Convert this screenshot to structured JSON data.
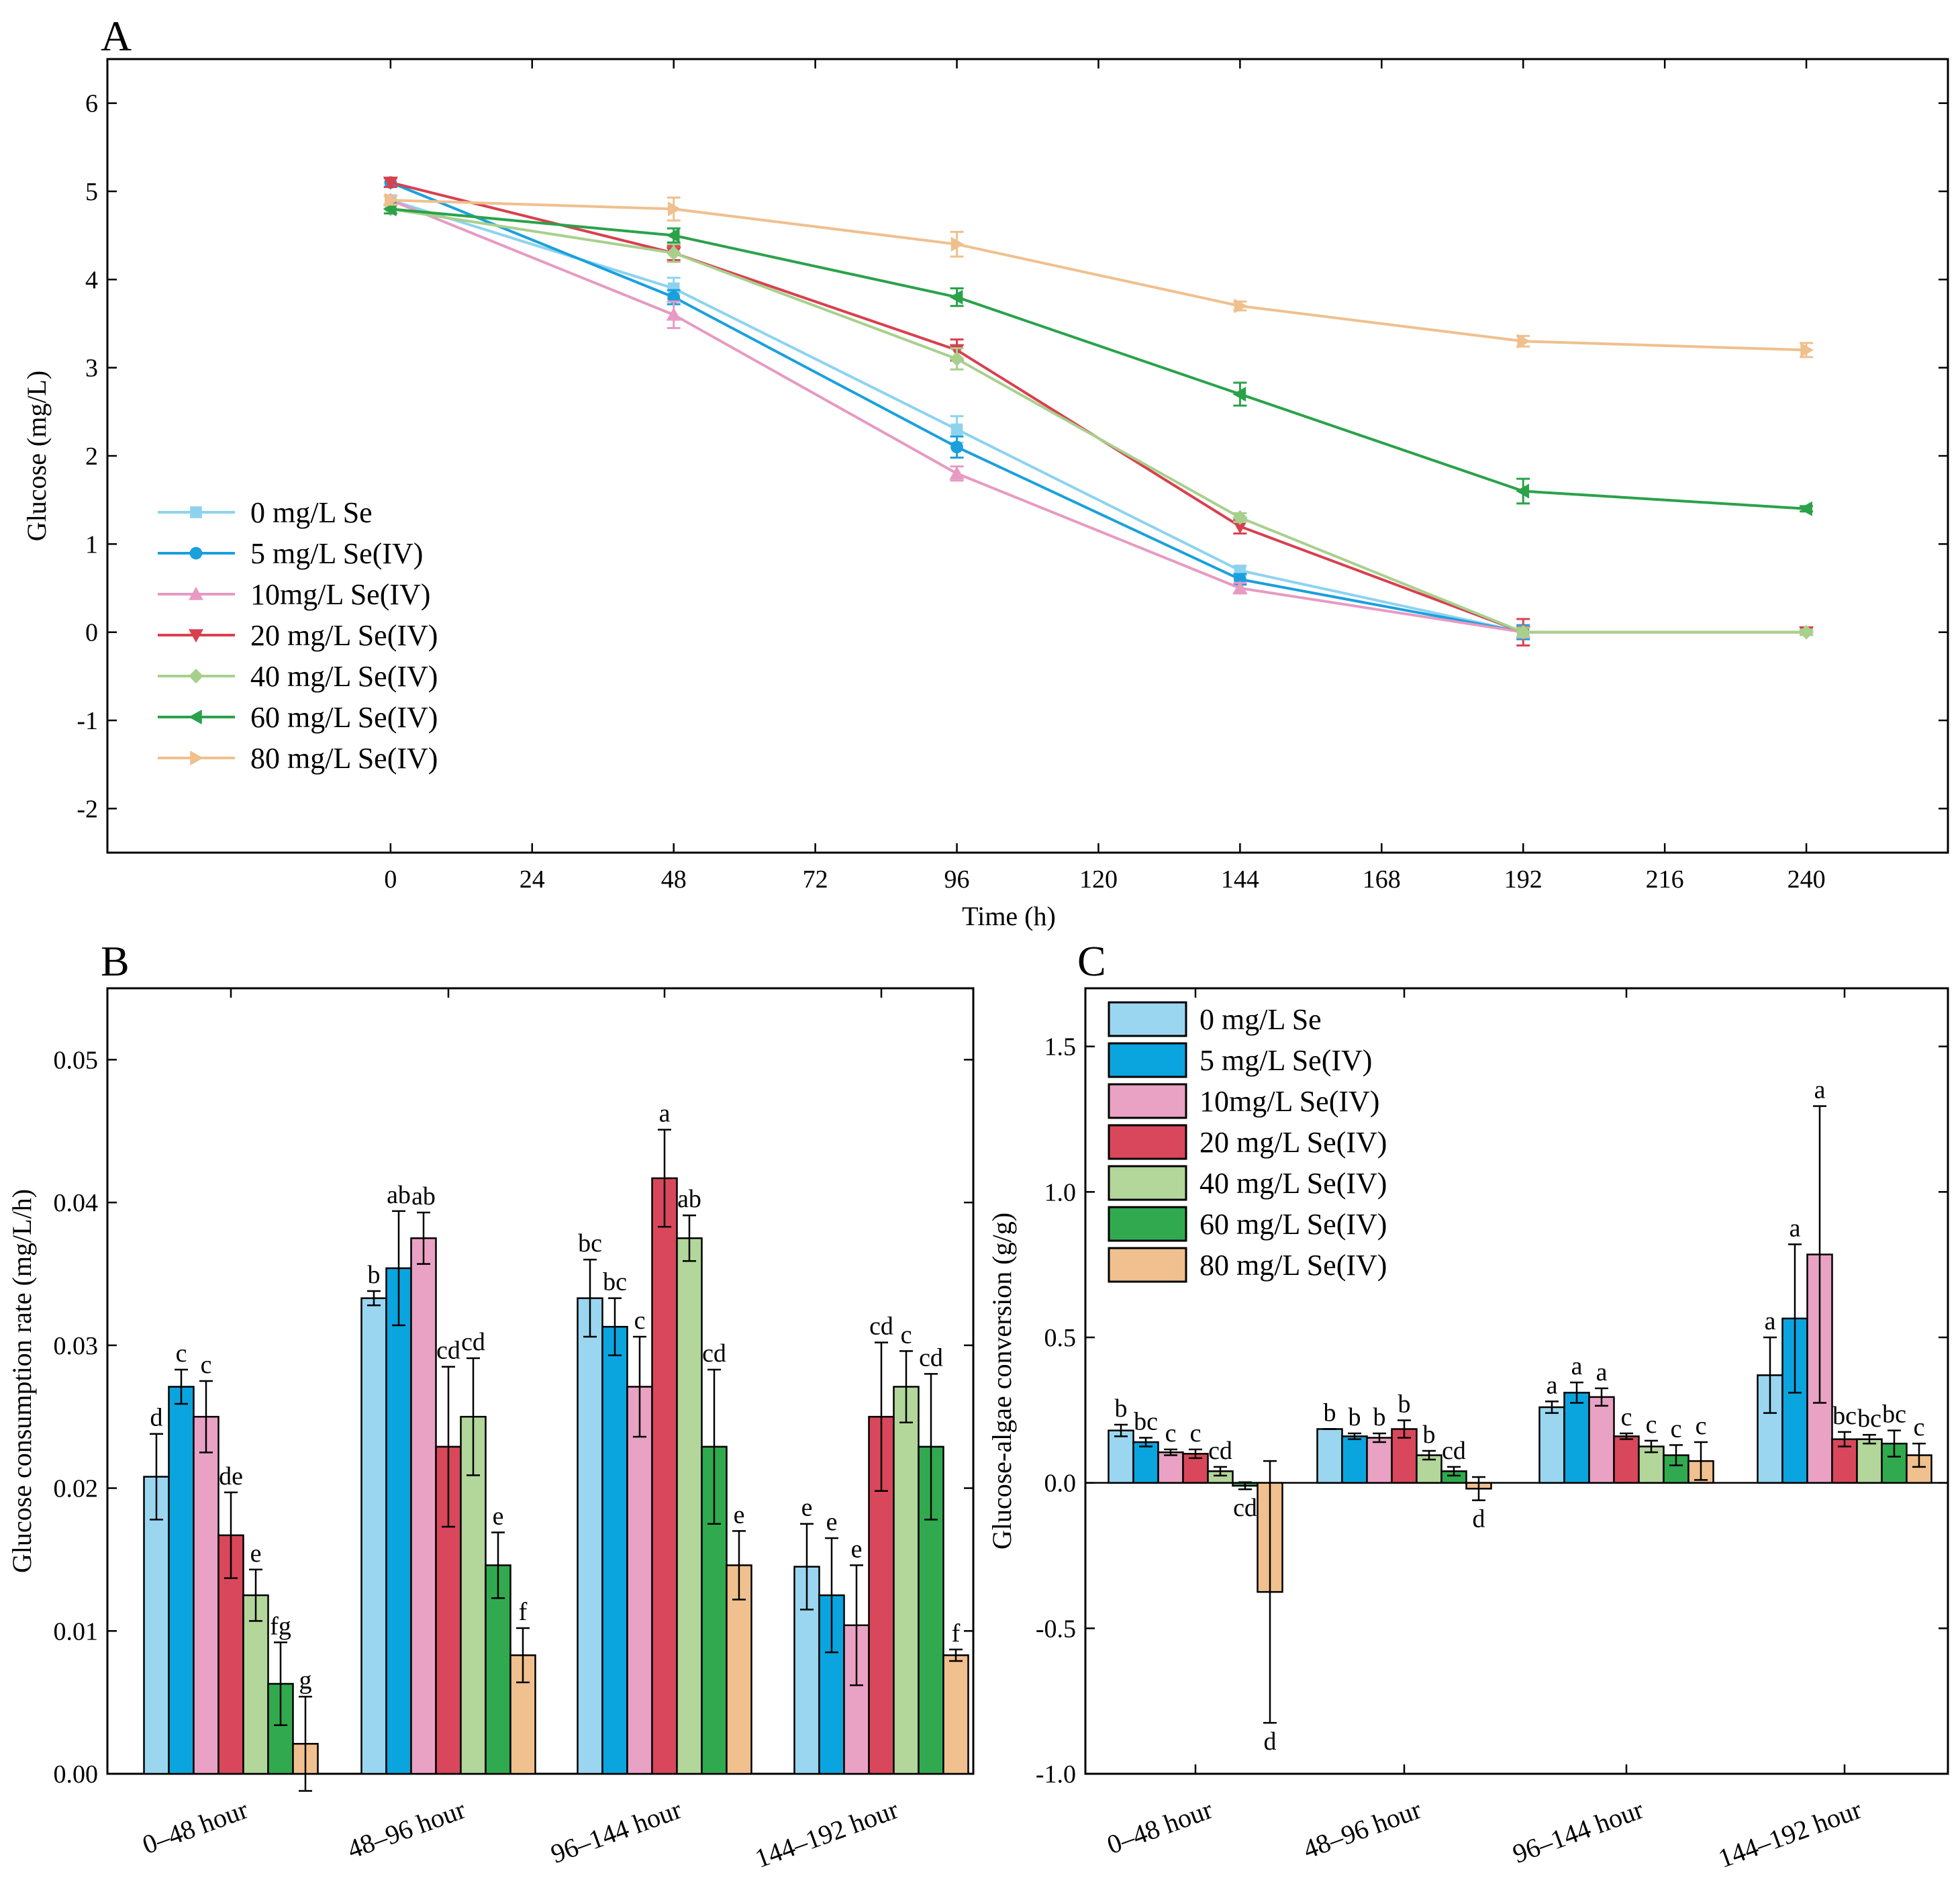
{
  "chart_data": [
    {
      "panel": "A",
      "type": "line",
      "xlabel": "Time (h)",
      "ylabel": "Glucose (mg/L)",
      "xlim": [
        -48,
        264
      ],
      "ylim": [
        -2.5,
        6.5
      ],
      "xticks": [
        0,
        24,
        48,
        72,
        96,
        120,
        144,
        168,
        192,
        216,
        240
      ],
      "yticks": [
        -2,
        -1,
        0,
        1,
        2,
        3,
        4,
        5,
        6
      ],
      "x": [
        0,
        48,
        96,
        144,
        192,
        240
      ],
      "series": [
        {
          "name": "0 mg/L Se",
          "color": "#8dd3f0",
          "marker": "square",
          "values": [
            4.9,
            3.9,
            2.3,
            0.7,
            0.0,
            null
          ],
          "errors": [
            0.05,
            0.12,
            0.15,
            0.05,
            0.05,
            null
          ]
        },
        {
          "name": "5 mg/L Se(IV)",
          "color": "#1aa0dd",
          "marker": "circle",
          "values": [
            5.1,
            3.8,
            2.1,
            0.6,
            0.0,
            null
          ],
          "errors": [
            0.05,
            0.08,
            0.12,
            0.06,
            0.08,
            null
          ]
        },
        {
          "name": "10mg/L Se(IV)",
          "color": "#e79ac2",
          "marker": "triangle-up",
          "values": [
            4.9,
            3.6,
            1.8,
            0.5,
            0.0,
            null
          ],
          "errors": [
            0.05,
            0.15,
            0.08,
            0.06,
            0.06,
            null
          ]
        },
        {
          "name": "20 mg/L Se(IV)",
          "color": "#d8404e",
          "marker": "triangle-down",
          "values": [
            5.1,
            4.3,
            3.2,
            1.2,
            0.0,
            0.0
          ],
          "errors": [
            0.05,
            0.08,
            0.12,
            0.08,
            0.15,
            0.03
          ]
        },
        {
          "name": "40 mg/L Se(IV)",
          "color": "#a8d08d",
          "marker": "diamond",
          "values": [
            4.8,
            4.3,
            3.1,
            1.3,
            0.0,
            0.0
          ],
          "errors": [
            0.05,
            0.1,
            0.12,
            0.05,
            0.05,
            0.03
          ]
        },
        {
          "name": "60 mg/L Se(IV)",
          "color": "#2aa24a",
          "marker": "triangle-left",
          "values": [
            4.8,
            4.5,
            3.8,
            2.7,
            1.6,
            1.4
          ],
          "errors": [
            0.05,
            0.08,
            0.1,
            0.13,
            0.14,
            0.03
          ]
        },
        {
          "name": "80 mg/L Se(IV)",
          "color": "#efc08e",
          "marker": "triangle-right",
          "values": [
            4.9,
            4.8,
            4.4,
            3.7,
            3.3,
            3.2
          ],
          "errors": [
            0.05,
            0.13,
            0.14,
            0.05,
            0.06,
            0.08
          ]
        }
      ],
      "legend_location": "lower-left"
    },
    {
      "panel": "B",
      "type": "bar",
      "ylabel": "Glucose consumption rate (mg/L/h)",
      "ylim": [
        0,
        0.055
      ],
      "yticks": [
        0.0,
        0.01,
        0.02,
        0.03,
        0.04,
        0.05
      ],
      "ytick_labels": [
        "0.00",
        "0.01",
        "0.02",
        "0.03",
        "0.04",
        "0.05"
      ],
      "categories": [
        "0–48 hour",
        "48–96 hour",
        "96–144 hour",
        "144–192 hour"
      ],
      "series": [
        {
          "name": "0 mg/L Se",
          "color": "#9ad6f0",
          "values": [
            0.0208,
            0.0333,
            0.0333,
            0.0145
          ],
          "errors": [
            0.003,
            0.0005,
            0.0027,
            0.003
          ],
          "letters": [
            "d",
            "b",
            "bc",
            "e"
          ]
        },
        {
          "name": "5 mg/L Se(IV)",
          "color": "#0aa5df",
          "values": [
            0.0271,
            0.0354,
            0.0313,
            0.0125
          ],
          "errors": [
            0.0012,
            0.004,
            0.002,
            0.004
          ],
          "letters": [
            "c",
            "ab",
            "bc",
            "e"
          ]
        },
        {
          "name": "10mg/L Se(IV)",
          "color": "#e9a2c3",
          "values": [
            0.025,
            0.0375,
            0.0271,
            0.0104
          ],
          "errors": [
            0.0025,
            0.0018,
            0.0035,
            0.0042
          ],
          "letters": [
            "c",
            "ab",
            "c",
            "e"
          ]
        },
        {
          "name": "20 mg/L Se(IV)",
          "color": "#d8475b",
          "values": [
            0.0167,
            0.0229,
            0.0417,
            0.025
          ],
          "errors": [
            0.003,
            0.0056,
            0.0034,
            0.0052
          ],
          "letters": [
            "de",
            "cd",
            "a",
            "cd"
          ]
        },
        {
          "name": "40 mg/L Se(IV)",
          "color": "#b3d69b",
          "values": [
            0.0125,
            0.025,
            0.0375,
            0.0271
          ],
          "errors": [
            0.0018,
            0.0041,
            0.0016,
            0.0025
          ],
          "letters": [
            "e",
            "cd",
            "ab",
            "c"
          ]
        },
        {
          "name": "60 mg/L Se(IV)",
          "color": "#31aa4f",
          "values": [
            0.0063,
            0.0146,
            0.0229,
            0.0229
          ],
          "errors": [
            0.0029,
            0.0023,
            0.0054,
            0.0051
          ],
          "letters": [
            "fg",
            "e",
            "cd",
            "cd"
          ]
        },
        {
          "name": "80 mg/L Se(IV)",
          "color": "#f0c08f",
          "values": [
            0.0021,
            0.0083,
            0.0146,
            0.0083
          ],
          "errors": [
            0.0033,
            0.0019,
            0.0024,
            0.0004
          ],
          "letters": [
            "g",
            "f",
            "e",
            "f"
          ]
        }
      ]
    },
    {
      "panel": "C",
      "type": "bar",
      "ylabel": "Glucose-algae conversion (g/g)",
      "ylim": [
        -1.0,
        1.7
      ],
      "yticks": [
        -1.0,
        -0.5,
        0.0,
        0.5,
        1.0,
        1.5
      ],
      "ytick_labels": [
        "-1.0",
        "-0.5",
        "0.0",
        "0.5",
        "1.0",
        "1.5"
      ],
      "categories": [
        "0–48 hour",
        "48–96 hour",
        "96–144 hour",
        "144–192 hour"
      ],
      "series": [
        {
          "name": "0 mg/L Se",
          "color": "#9ad6f0",
          "values": [
            0.18,
            0.185,
            0.26,
            0.37
          ],
          "errors": [
            0.02,
            0.0,
            0.02,
            0.13
          ],
          "letters": [
            "b",
            "b",
            "a",
            "a"
          ]
        },
        {
          "name": "5 mg/L Se(IV)",
          "color": "#0aa5df",
          "values": [
            0.14,
            0.16,
            0.31,
            0.565
          ],
          "errors": [
            0.015,
            0.01,
            0.035,
            0.255
          ],
          "letters": [
            "bc",
            "b",
            "a",
            "a"
          ]
        },
        {
          "name": "10mg/L Se(IV)",
          "color": "#e9a2c3",
          "values": [
            0.105,
            0.155,
            0.295,
            0.785
          ],
          "errors": [
            0.01,
            0.015,
            0.03,
            0.51
          ],
          "letters": [
            "c",
            "b",
            "a",
            "a"
          ]
        },
        {
          "name": "20 mg/L Se(IV)",
          "color": "#d8475b",
          "values": [
            0.1,
            0.185,
            0.16,
            0.15
          ],
          "errors": [
            0.015,
            0.03,
            0.01,
            0.025
          ],
          "letters": [
            "c",
            "b",
            "c",
            "bc"
          ]
        },
        {
          "name": "40 mg/L Se(IV)",
          "color": "#b3d69b",
          "values": [
            0.04,
            0.095,
            0.125,
            0.15
          ],
          "errors": [
            0.015,
            0.015,
            0.02,
            0.015
          ],
          "letters": [
            "cd",
            "b",
            "c",
            "bc"
          ]
        },
        {
          "name": "60 mg/L Se(IV)",
          "color": "#31aa4f",
          "values": [
            -0.01,
            0.04,
            0.095,
            0.135
          ],
          "errors": [
            0.012,
            0.015,
            0.035,
            0.045
          ],
          "letters": [
            "cd",
            "cd",
            "c",
            "bc"
          ]
        },
        {
          "name": "80 mg/L Se(IV)",
          "color": "#f0c08f",
          "values": [
            -0.375,
            -0.02,
            0.075,
            0.095
          ],
          "errors": [
            0.45,
            0.04,
            0.065,
            0.04
          ],
          "letters": [
            "d",
            "d",
            "c",
            "c"
          ]
        }
      ],
      "legend_location": "top-left"
    }
  ]
}
